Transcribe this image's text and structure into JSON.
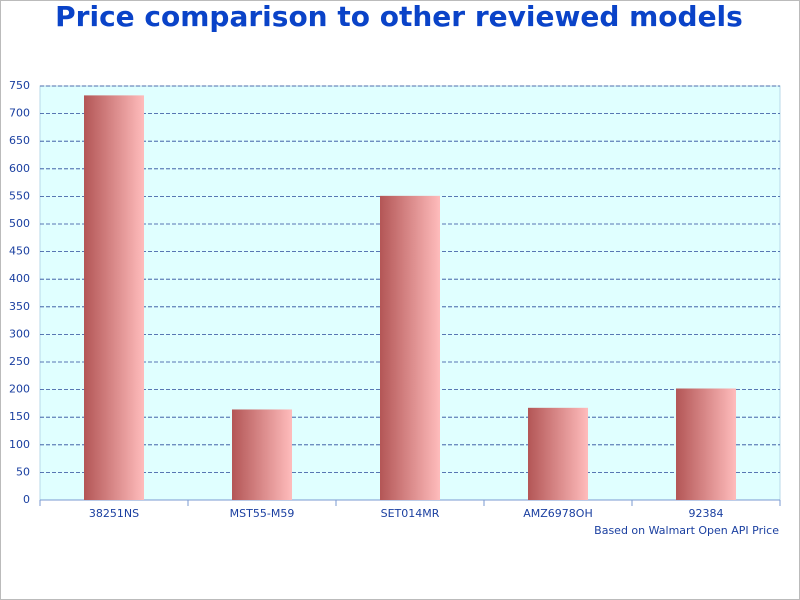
{
  "chart_data": {
    "type": "bar",
    "title": "Price comparison to other reviewed models",
    "footnote": "Based on Walmart Open API Price",
    "categories": [
      "38251NS",
      "MST55-M59",
      "SET014MR",
      "AMZ6978OH",
      "92384"
    ],
    "values": [
      733,
      164,
      551,
      167,
      202
    ],
    "color": "#b35656",
    "ylim": [
      0,
      750
    ],
    "yticks": [
      0,
      50,
      100,
      150,
      200,
      250,
      300,
      350,
      400,
      450,
      500,
      550,
      600,
      650,
      700,
      750
    ],
    "grid": true
  }
}
